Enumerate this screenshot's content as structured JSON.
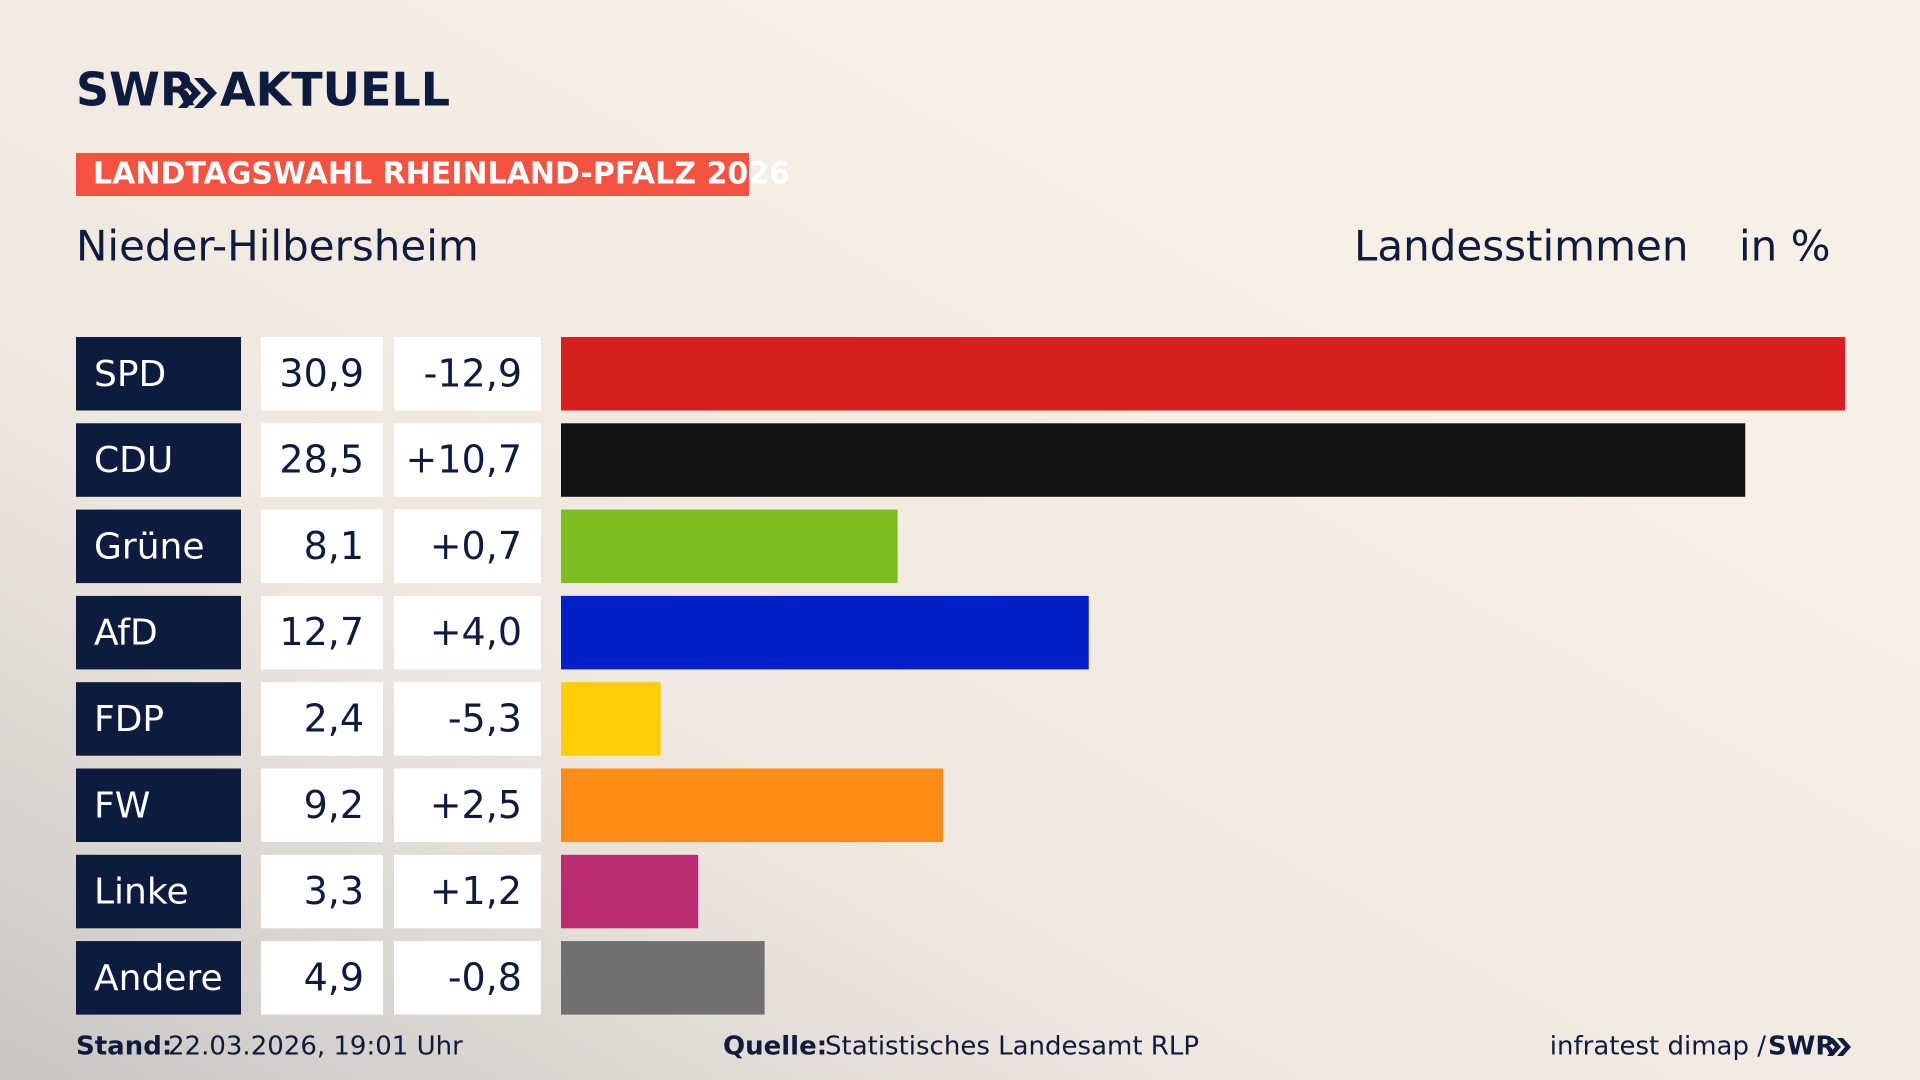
{
  "header": {
    "brand": "SWR",
    "brand_suffix": "AKTUELL",
    "banner": "LANDTAGSWAHL RHEINLAND-PFALZ 2026"
  },
  "chart_data": {
    "type": "bar",
    "orientation": "horizontal",
    "title": "Nieder-Hilbersheim",
    "value_label_title": "Landesstimmen",
    "unit": "in %",
    "categories": [
      "SPD",
      "CDU",
      "Grüne",
      "AfD",
      "FDP",
      "FW",
      "Linke",
      "Andere"
    ],
    "values": [
      30.9,
      28.5,
      8.1,
      12.7,
      2.4,
      9.2,
      3.3,
      4.9
    ],
    "value_labels": [
      "30,9",
      "28,5",
      "8,1",
      "12,7",
      "2,4",
      "9,2",
      "3,3",
      "4,9"
    ],
    "changes": [
      -12.9,
      10.7,
      0.7,
      4.0,
      -5.3,
      2.5,
      1.2,
      -0.8
    ],
    "change_labels": [
      "-12,9",
      "+10,7",
      "+0,7",
      "+4,0",
      "-5,3",
      "+2,5",
      "+1,2",
      "-0,8"
    ],
    "colors": [
      "#d61f1f",
      "#141414",
      "#7bbd1e",
      "#001fc8",
      "#ffcd05",
      "#ff8c17",
      "#bb2d70",
      "#707070"
    ]
  },
  "footer": {
    "stand_label": "Stand:",
    "stand": "22.03.2026, 19:01 Uhr",
    "source_label": "Quelle:",
    "source": "Statistisches Landesamt RLP",
    "credit": "infratest dimap /",
    "credit_brand": "SWR"
  }
}
